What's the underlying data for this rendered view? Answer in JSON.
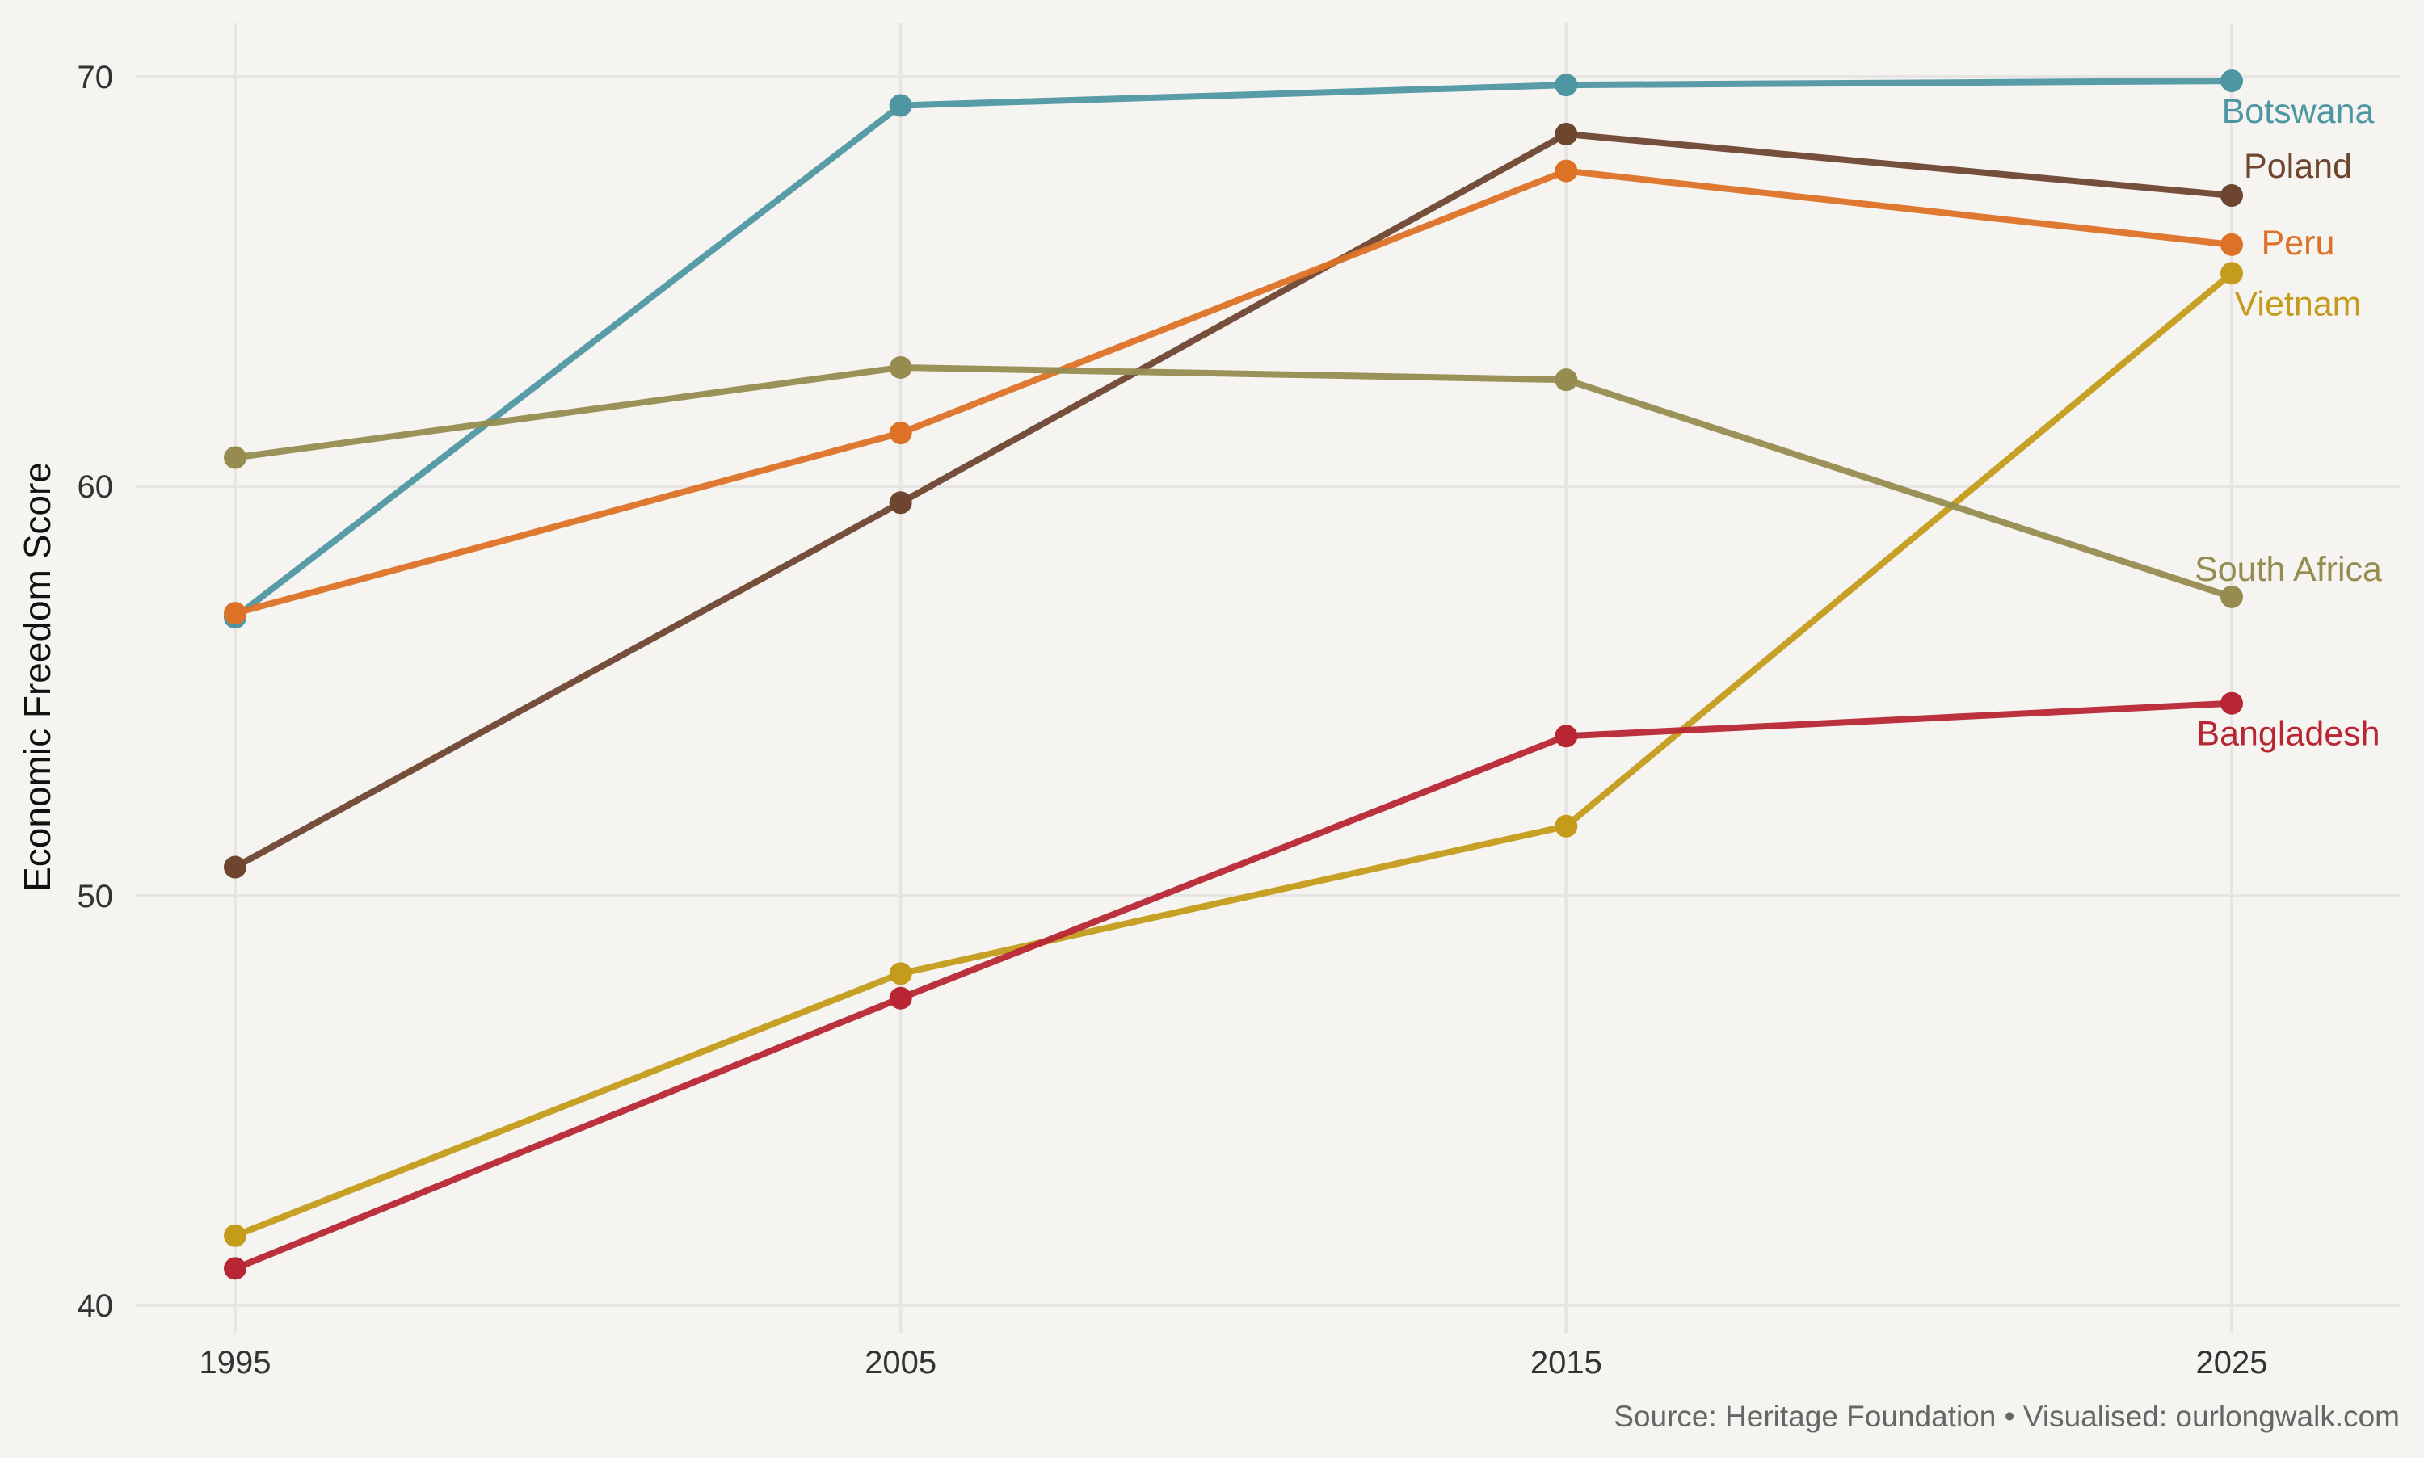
{
  "chart_data": {
    "type": "line",
    "x": [
      1995,
      2005,
      2015,
      2025
    ],
    "ylabel": "Economic Freedom Score",
    "xlabel": "",
    "ylim": [
      40,
      71
    ],
    "y_ticks": [
      40,
      50,
      60,
      70
    ],
    "x_ticks": [
      "1995",
      "2005",
      "2015",
      "2025"
    ],
    "grid": true,
    "legend": "direct labels at line ends",
    "caption": "Source: Heritage Foundation • Visualised: ourlongwalk.com",
    "series": [
      {
        "name": "Botswana",
        "color": "#4e97a2",
        "values": [
          56.8,
          69.3,
          69.8,
          69.9
        ]
      },
      {
        "name": "Poland",
        "color": "#6e4630",
        "values": [
          50.7,
          59.6,
          68.6,
          67.1
        ]
      },
      {
        "name": "Peru",
        "color": "#dd7226",
        "values": [
          56.9,
          61.3,
          67.7,
          65.9
        ]
      },
      {
        "name": "Vietnam",
        "color": "#c49b1a",
        "values": [
          41.7,
          48.1,
          51.7,
          65.2
        ]
      },
      {
        "name": "South Africa",
        "color": "#968c50",
        "values": [
          60.7,
          62.9,
          62.6,
          57.3
        ]
      },
      {
        "name": "Bangladesh",
        "color": "#b82634",
        "values": [
          40.9,
          47.5,
          53.9,
          54.7
        ]
      }
    ]
  }
}
